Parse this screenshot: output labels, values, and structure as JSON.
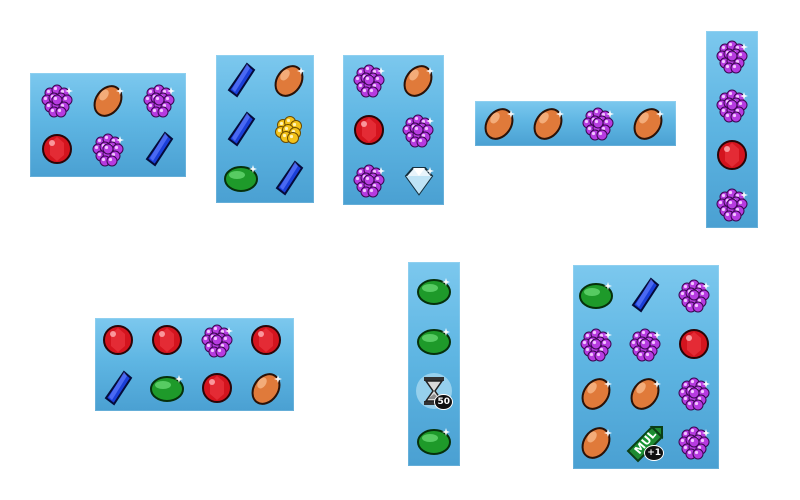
{
  "groups": [
    {
      "id": "group-a",
      "rows": [
        [
          {
            "gem": "purple-cluster"
          },
          {
            "gem": "orange-oval"
          },
          {
            "gem": "purple-cluster"
          }
        ],
        [
          {
            "gem": "red-round"
          },
          {
            "gem": "purple-cluster"
          },
          {
            "gem": "blue-crystal"
          }
        ]
      ]
    },
    {
      "id": "group-b",
      "rows": [
        [
          {
            "gem": "blue-crystal"
          },
          {
            "gem": "orange-oval"
          }
        ],
        [
          {
            "gem": "blue-crystal"
          },
          {
            "gem": "gold-nugget"
          }
        ],
        [
          {
            "gem": "green-oval"
          },
          {
            "gem": "blue-crystal"
          }
        ]
      ]
    },
    {
      "id": "group-c",
      "rows": [
        [
          {
            "gem": "purple-cluster"
          },
          {
            "gem": "orange-oval"
          }
        ],
        [
          {
            "gem": "red-round"
          },
          {
            "gem": "purple-cluster"
          }
        ],
        [
          {
            "gem": "purple-cluster"
          },
          {
            "gem": "white-diamond"
          }
        ]
      ]
    },
    {
      "id": "group-d",
      "rows": [
        [
          {
            "gem": "orange-oval"
          },
          {
            "gem": "orange-oval"
          },
          {
            "gem": "purple-cluster"
          },
          {
            "gem": "orange-oval"
          }
        ]
      ]
    },
    {
      "id": "group-e",
      "rows": [
        [
          {
            "gem": "purple-cluster"
          }
        ],
        [
          {
            "gem": "purple-cluster"
          }
        ],
        [
          {
            "gem": "red-round"
          }
        ],
        [
          {
            "gem": "purple-cluster"
          }
        ]
      ]
    },
    {
      "id": "group-f",
      "rows": [
        [
          {
            "gem": "red-round"
          },
          {
            "gem": "red-round"
          },
          {
            "gem": "purple-cluster"
          },
          {
            "gem": "red-round"
          }
        ],
        [
          {
            "gem": "blue-crystal"
          },
          {
            "gem": "green-oval"
          },
          {
            "gem": "red-round"
          },
          {
            "gem": "orange-oval"
          }
        ]
      ]
    },
    {
      "id": "group-g",
      "rows": [
        [
          {
            "gem": "green-oval"
          }
        ],
        [
          {
            "gem": "green-oval"
          }
        ],
        [
          {
            "gem": "hourglass",
            "badge": "50"
          }
        ],
        [
          {
            "gem": "green-oval"
          }
        ]
      ]
    },
    {
      "id": "group-h",
      "rows": [
        [
          {
            "gem": "green-oval"
          },
          {
            "gem": "blue-crystal"
          },
          {
            "gem": "purple-cluster"
          }
        ],
        [
          {
            "gem": "purple-cluster"
          },
          {
            "gem": "purple-cluster"
          },
          {
            "gem": "red-round"
          }
        ],
        [
          {
            "gem": "orange-oval"
          },
          {
            "gem": "orange-oval"
          },
          {
            "gem": "purple-cluster"
          }
        ],
        [
          {
            "gem": "orange-oval"
          },
          {
            "gem": "multiplier",
            "label": "MUL",
            "badge": "+1"
          },
          {
            "gem": "purple-cluster"
          }
        ]
      ]
    }
  ],
  "colors": {
    "panel_top": "#7cc8ee",
    "panel_bottom": "#4aa0d2",
    "purple": "#b63be0",
    "orange": "#e07a3a",
    "red": "#d4141e",
    "blue": "#1a3fd8",
    "green": "#1e9a2a",
    "gold": "#f3c21a",
    "white": "#e8f4fb"
  }
}
